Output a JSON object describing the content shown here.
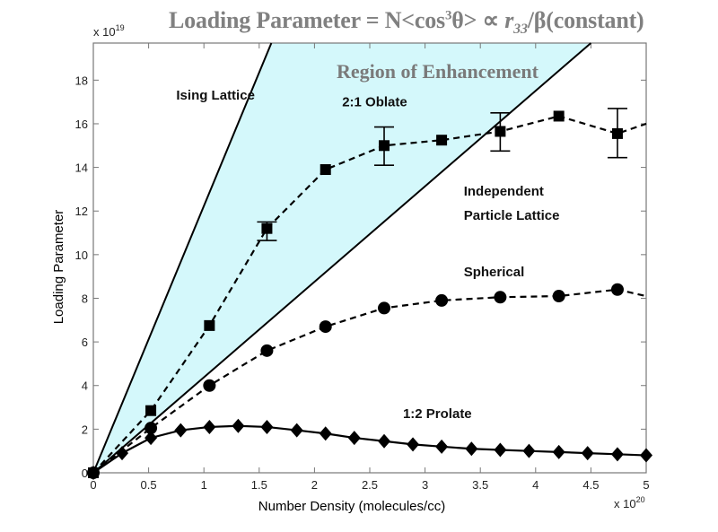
{
  "title": {
    "prefix": "Loading Parameter = N<cos",
    "sup": "3",
    "mid": "θ> ∝ ",
    "r": "r",
    "sub": "33",
    "suffix": "/β(constant)"
  },
  "chart_data": {
    "type": "line",
    "title": "Loading Parameter = N<cos³θ> ∝ r33/β(constant)",
    "xlabel": "Number Density (molecules/cc)",
    "ylabel": "Loading Parameter",
    "x_multiplier": "x 10^20",
    "y_multiplier": "x 10^19",
    "xlim": [
      0,
      5
    ],
    "ylim": [
      0,
      19.7
    ],
    "xticks": [
      0,
      0.5,
      1,
      1.5,
      2,
      2.5,
      3,
      3.5,
      4,
      4.5,
      5
    ],
    "xtick_labels": [
      "0",
      "0.5",
      "1",
      "1.5",
      "2",
      "2.5",
      "3",
      "3.5",
      "4",
      "4.5",
      "5"
    ],
    "yticks": [
      0,
      2,
      4,
      6,
      8,
      10,
      12,
      14,
      16,
      18
    ],
    "ytick_labels": [
      "0",
      "2",
      "4",
      "6",
      "8",
      "10",
      "12",
      "14",
      "16",
      "18"
    ],
    "grid": false,
    "shaded_region": {
      "label": "Region of Enhancement",
      "color": "#d4f8fb",
      "between": [
        "Ising Lattice",
        "Independent Particle Lattice"
      ]
    },
    "series": [
      {
        "name": "Ising Lattice",
        "style": "solid",
        "marker": "none",
        "x": [
          0,
          1.61
        ],
        "y": [
          0,
          19.7
        ]
      },
      {
        "name": "Independent Particle Lattice",
        "style": "solid",
        "marker": "none",
        "x": [
          0,
          4.5
        ],
        "y": [
          0,
          19.7
        ]
      },
      {
        "name": "2:1 Oblate",
        "style": "dashed",
        "marker": "square",
        "x": [
          0,
          0.52,
          1.05,
          1.57,
          2.1,
          2.63,
          3.15,
          3.68,
          4.21,
          4.74,
          5.0
        ],
        "y": [
          0,
          2.85,
          6.75,
          11.2,
          13.9,
          15.0,
          15.25,
          15.65,
          16.35,
          15.55,
          16.0
        ],
        "error": [
          null,
          null,
          null,
          [
            10.65,
            11.5
          ],
          null,
          [
            14.1,
            15.85
          ],
          null,
          [
            14.75,
            16.5
          ],
          null,
          [
            14.45,
            16.7
          ],
          null
        ]
      },
      {
        "name": "Spherical",
        "style": "dashed",
        "marker": "circle",
        "x": [
          0,
          0.52,
          1.05,
          1.57,
          2.1,
          2.63,
          3.15,
          3.68,
          4.21,
          4.74,
          5.0
        ],
        "y": [
          0,
          2.05,
          4.0,
          5.6,
          6.7,
          7.55,
          7.9,
          8.05,
          8.1,
          8.4,
          8.1
        ]
      },
      {
        "name": "1:2 Prolate",
        "style": "solid",
        "marker": "diamond",
        "x": [
          0,
          0.26,
          0.52,
          0.79,
          1.05,
          1.31,
          1.57,
          1.84,
          2.1,
          2.36,
          2.63,
          2.89,
          3.15,
          3.42,
          3.68,
          3.94,
          4.21,
          4.47,
          4.74,
          5.0
        ],
        "y": [
          0,
          0.9,
          1.6,
          1.95,
          2.1,
          2.15,
          2.1,
          1.95,
          1.8,
          1.6,
          1.45,
          1.3,
          1.2,
          1.1,
          1.05,
          1.0,
          0.95,
          0.9,
          0.85,
          0.8
        ]
      }
    ],
    "annotations": [
      {
        "text": "Ising Lattice",
        "x": 0.75,
        "y": 17.1
      },
      {
        "text": "Region of Enhancement",
        "x": 2.2,
        "y": 18.1
      },
      {
        "text": "2:1 Oblate",
        "x": 2.25,
        "y": 16.8
      },
      {
        "text": "Independent",
        "x": 3.35,
        "y": 12.7
      },
      {
        "text": "Particle Lattice",
        "x": 3.35,
        "y": 11.6
      },
      {
        "text": "Spherical",
        "x": 3.35,
        "y": 9.0
      },
      {
        "text": "1:2 Prolate",
        "x": 2.8,
        "y": 2.5
      }
    ]
  }
}
